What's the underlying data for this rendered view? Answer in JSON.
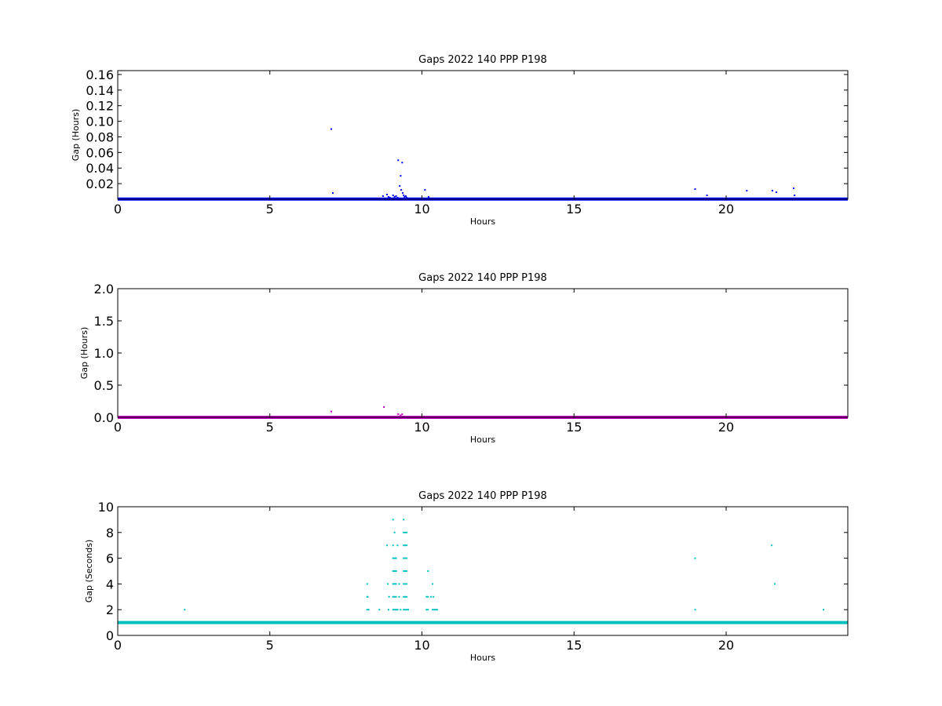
{
  "chart_data": [
    {
      "type": "scatter",
      "title": "Gaps 2022 140 PPP  P198",
      "xlabel": "Hours",
      "ylabel": "Gap (Hours)",
      "xlim": [
        0,
        24
      ],
      "ylim": [
        0,
        0.165
      ],
      "xticks": [
        0,
        5,
        10,
        15,
        20
      ],
      "yticks": [
        0.02,
        0.04,
        0.06,
        0.08,
        0.1,
        0.12,
        0.14,
        0.16
      ],
      "ytick_labels": [
        "0.02",
        "0.04",
        "0.06",
        "0.08",
        "0.10",
        "0.12",
        "0.14",
        "0.16"
      ],
      "color": "#0000ff",
      "baseline": {
        "y": 0.0003,
        "x_range": [
          0,
          24
        ]
      },
      "points": [
        [
          7.02,
          0.09
        ],
        [
          7.07,
          0.008
        ],
        [
          8.72,
          0.004
        ],
        [
          8.85,
          0.006
        ],
        [
          8.9,
          0.003
        ],
        [
          8.95,
          0.002
        ],
        [
          9.05,
          0.005
        ],
        [
          9.1,
          0.003
        ],
        [
          9.15,
          0.004
        ],
        [
          9.2,
          0.002
        ],
        [
          9.22,
          0.05
        ],
        [
          9.27,
          0.017
        ],
        [
          9.3,
          0.03
        ],
        [
          9.32,
          0.012
        ],
        [
          9.35,
          0.047
        ],
        [
          9.37,
          0.008
        ],
        [
          9.4,
          0.005
        ],
        [
          9.43,
          0.003
        ],
        [
          9.47,
          0.004
        ],
        [
          9.5,
          0.002
        ],
        [
          10.1,
          0.012
        ],
        [
          10.22,
          0.003
        ],
        [
          18.98,
          0.013
        ],
        [
          19.37,
          0.005
        ],
        [
          20.68,
          0.011
        ],
        [
          21.52,
          0.011
        ],
        [
          21.65,
          0.009
        ],
        [
          22.22,
          0.014
        ],
        [
          22.25,
          0.005
        ]
      ]
    },
    {
      "type": "scatter",
      "title": "Gaps 2022 140 PPP  P198",
      "xlabel": "Hours",
      "ylabel": "Gap (Hours)",
      "xlim": [
        0,
        24
      ],
      "ylim": [
        0,
        2.0
      ],
      "xticks": [
        0,
        5,
        10,
        15,
        20
      ],
      "yticks": [
        0.0,
        0.5,
        1.0,
        1.5,
        2.0
      ],
      "ytick_labels": [
        "0.0",
        "0.5",
        "1.0",
        "1.5",
        "2.0"
      ],
      "color": "#bf00bf",
      "baseline": {
        "y": 0.0003,
        "x_range": [
          0,
          24
        ]
      },
      "points": [
        [
          7.02,
          0.09
        ],
        [
          8.75,
          0.16
        ],
        [
          9.22,
          0.05
        ],
        [
          9.35,
          0.047
        ],
        [
          9.3,
          0.03
        ],
        [
          9.27,
          0.017
        ]
      ]
    },
    {
      "type": "scatter",
      "title": "Gaps 2022 140 PPP  P198",
      "xlabel": "Hours",
      "ylabel": "Gap (Seconds)",
      "xlim": [
        0,
        24
      ],
      "ylim": [
        0,
        10
      ],
      "xticks": [
        0,
        5,
        10,
        15,
        20
      ],
      "yticks": [
        0,
        2,
        4,
        6,
        8,
        10
      ],
      "ytick_labels": [
        "0",
        "2",
        "4",
        "6",
        "8",
        "10"
      ],
      "color": "#00bfbf",
      "baseline": {
        "y": 1,
        "x_range": [
          0,
          24
        ]
      },
      "points": [
        [
          2.2,
          2
        ],
        [
          8.2,
          4
        ],
        [
          8.2,
          3
        ],
        [
          8.22,
          3
        ],
        [
          8.2,
          2
        ],
        [
          8.25,
          2
        ],
        [
          8.6,
          2
        ],
        [
          8.85,
          7
        ],
        [
          8.88,
          4
        ],
        [
          8.9,
          2
        ],
        [
          8.92,
          3
        ],
        [
          9.05,
          9
        ],
        [
          9.05,
          7
        ],
        [
          9.05,
          6
        ],
        [
          9.05,
          5
        ],
        [
          9.05,
          4
        ],
        [
          9.05,
          3
        ],
        [
          9.05,
          2
        ],
        [
          9.1,
          8
        ],
        [
          9.1,
          6
        ],
        [
          9.1,
          5
        ],
        [
          9.1,
          4
        ],
        [
          9.1,
          3
        ],
        [
          9.1,
          2
        ],
        [
          9.15,
          6
        ],
        [
          9.15,
          5
        ],
        [
          9.15,
          4
        ],
        [
          9.15,
          3
        ],
        [
          9.15,
          2
        ],
        [
          9.2,
          7
        ],
        [
          9.2,
          2
        ],
        [
          9.25,
          4
        ],
        [
          9.25,
          3
        ],
        [
          9.3,
          2
        ],
        [
          9.4,
          9
        ],
        [
          9.4,
          8
        ],
        [
          9.4,
          7
        ],
        [
          9.4,
          6
        ],
        [
          9.4,
          5
        ],
        [
          9.4,
          4
        ],
        [
          9.4,
          3
        ],
        [
          9.4,
          2
        ],
        [
          9.45,
          8
        ],
        [
          9.45,
          7
        ],
        [
          9.45,
          6
        ],
        [
          9.45,
          5
        ],
        [
          9.45,
          4
        ],
        [
          9.45,
          3
        ],
        [
          9.45,
          2
        ],
        [
          9.5,
          8
        ],
        [
          9.5,
          7
        ],
        [
          9.5,
          6
        ],
        [
          9.5,
          5
        ],
        [
          9.5,
          4
        ],
        [
          9.5,
          3
        ],
        [
          9.5,
          2
        ],
        [
          9.55,
          2
        ],
        [
          10.2,
          5
        ],
        [
          10.15,
          3
        ],
        [
          10.2,
          3
        ],
        [
          10.15,
          2
        ],
        [
          10.2,
          2
        ],
        [
          10.3,
          3
        ],
        [
          10.35,
          4
        ],
        [
          10.38,
          3
        ],
        [
          10.35,
          2
        ],
        [
          10.4,
          2
        ],
        [
          10.45,
          2
        ],
        [
          10.5,
          2
        ],
        [
          18.98,
          6
        ],
        [
          18.98,
          2
        ],
        [
          21.5,
          7
        ],
        [
          21.6,
          4
        ],
        [
          23.2,
          2
        ]
      ]
    }
  ]
}
